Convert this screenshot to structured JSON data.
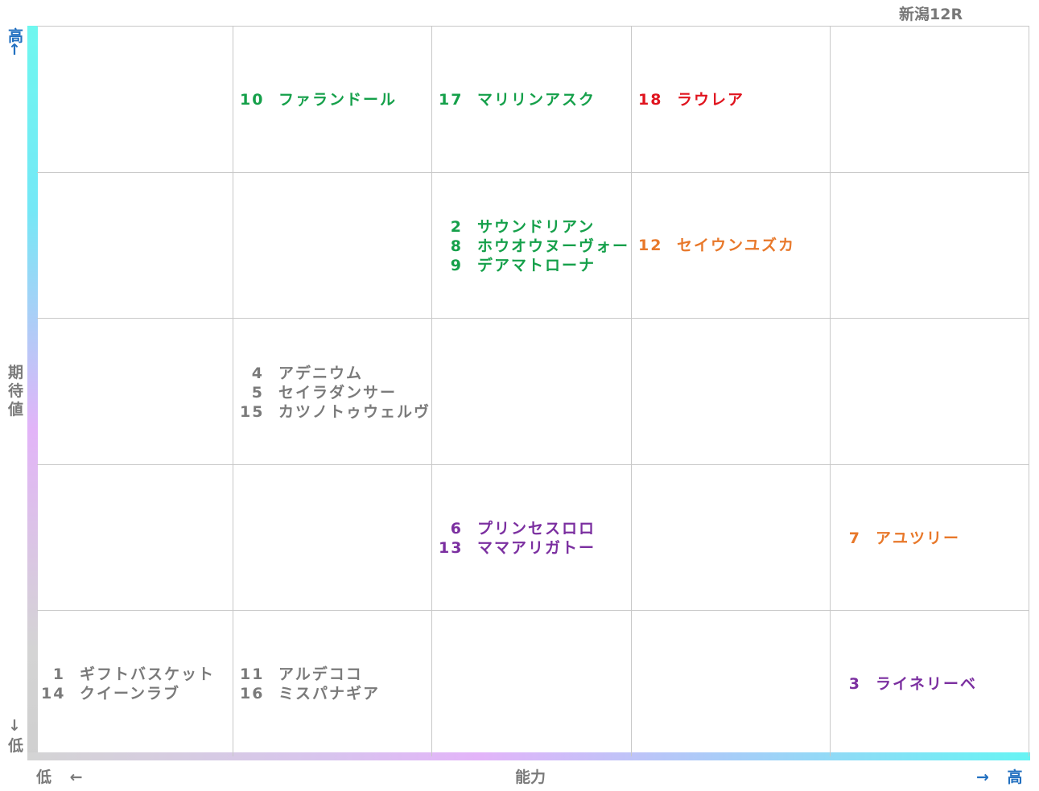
{
  "title": "新潟12R",
  "y_axis": {
    "high": "高",
    "high_arrow": "↑",
    "label_chars": [
      "期",
      "待",
      "値"
    ],
    "low_arrow": "↓",
    "low": "低"
  },
  "x_axis": {
    "low": "低",
    "low_arrow": "←",
    "label": "能力",
    "high_arrow": "→",
    "high": "高"
  },
  "colors": {
    "green": "#15a04a",
    "red": "#e0141e",
    "orange": "#e8782a",
    "purple": "#7b2fa0",
    "gray": "#7a7a7a",
    "axis_text": "#2270c0"
  },
  "cells": [
    {
      "id": "r1c2",
      "color": "green",
      "horses": [
        {
          "num": "10",
          "name": "ファランドール"
        }
      ]
    },
    {
      "id": "r1c3",
      "color": "green",
      "horses": [
        {
          "num": "17",
          "name": "マリリンアスク"
        }
      ]
    },
    {
      "id": "r1c4",
      "color": "red",
      "horses": [
        {
          "num": "18",
          "name": "ラウレア"
        }
      ]
    },
    {
      "id": "r2c3",
      "color": "green",
      "horses": [
        {
          "num": "2",
          "name": "サウンドリアン"
        },
        {
          "num": "8",
          "name": "ホウオウヌーヴォー"
        },
        {
          "num": "9",
          "name": "デアマトローナ"
        }
      ]
    },
    {
      "id": "r2c4",
      "color": "orange",
      "horses": [
        {
          "num": "12",
          "name": "セイウンユズカ"
        }
      ]
    },
    {
      "id": "r3c2",
      "color": "gray",
      "horses": [
        {
          "num": "4",
          "name": "アデニウム"
        },
        {
          "num": "5",
          "name": "セイラダンサー"
        },
        {
          "num": "15",
          "name": "カツノトゥウェルヴ"
        }
      ]
    },
    {
      "id": "r4c3",
      "color": "purple",
      "horses": [
        {
          "num": "6",
          "name": "プリンセスロロ"
        },
        {
          "num": "13",
          "name": "ママアリガトー"
        }
      ]
    },
    {
      "id": "r4c5",
      "color": "orange",
      "horses": [
        {
          "num": "7",
          "name": "アユツリー"
        }
      ]
    },
    {
      "id": "r5c1",
      "color": "gray",
      "horses": [
        {
          "num": "1",
          "name": "ギフトバスケット"
        },
        {
          "num": "14",
          "name": "クイーンラブ"
        }
      ]
    },
    {
      "id": "r5c2",
      "color": "gray",
      "horses": [
        {
          "num": "11",
          "name": "アルデココ"
        },
        {
          "num": "16",
          "name": "ミスパナギア"
        }
      ]
    },
    {
      "id": "r5c5",
      "color": "purple",
      "horses": [
        {
          "num": "3",
          "name": "ライネリーベ"
        }
      ]
    }
  ]
}
